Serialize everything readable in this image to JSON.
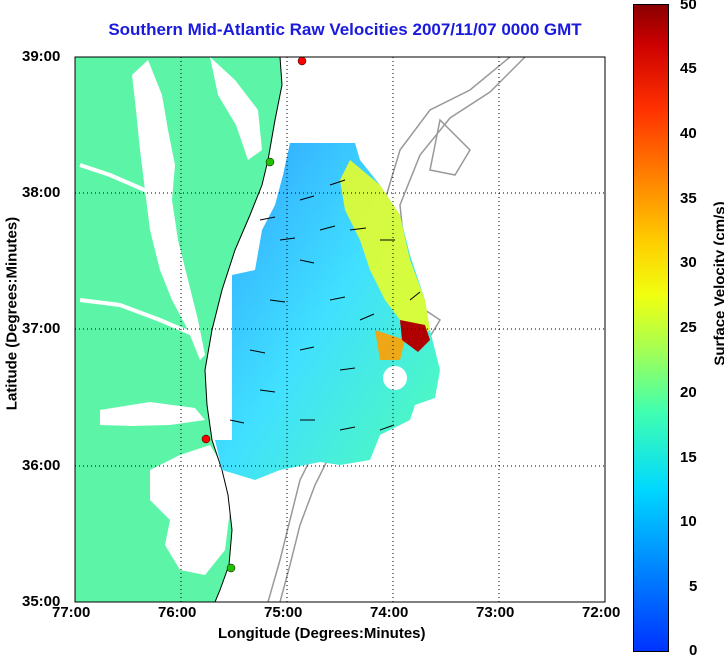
{
  "title": "Southern Mid-Atlantic Raw Velocities 2007/11/07 0000 GMT",
  "xlabel": "Longitude (Degrees:Minutes)",
  "ylabel": "Latitude (Degrees:Minutes)",
  "colorbar_label": "Surface Velocity (cm/s)",
  "x_ticks": [
    "77:00",
    "76:00",
    "75:00",
    "74:00",
    "73:00",
    "72:00"
  ],
  "y_ticks": [
    "39:00",
    "38:00",
    "37:00",
    "36:00",
    "35:00"
  ],
  "colorbar_ticks": [
    "50",
    "45",
    "40",
    "35",
    "30",
    "25",
    "20",
    "15",
    "10",
    "5",
    "0"
  ],
  "colors": {
    "land": "#5cf5a8",
    "bathymetry": "#999999",
    "title": "#1a1adc",
    "station_green": "#22c000",
    "station_red": "#ff0000"
  },
  "map": {
    "lon_range": [
      -77,
      -72
    ],
    "lat_range": [
      35,
      39
    ],
    "grid": true,
    "velocity_range_cm_s": [
      0,
      50
    ],
    "stations": [
      {
        "lon": -74.85,
        "lat": 38.95,
        "status": "red"
      },
      {
        "lon": -75.1,
        "lat": 38.27,
        "status": "green"
      },
      {
        "lon": -75.7,
        "lat": 36.18,
        "status": "red"
      },
      {
        "lon": -75.48,
        "lat": 35.23,
        "status": "green"
      }
    ]
  }
}
